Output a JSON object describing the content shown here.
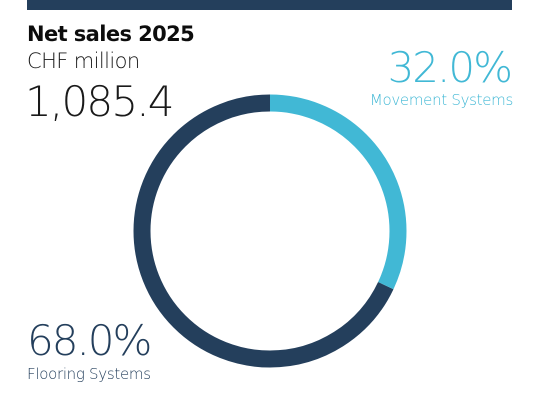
{
  "header": {
    "title": "Net sales 2025",
    "unit": "CHF million",
    "total": "1,085.4"
  },
  "colors": {
    "flooring": "#243f5c",
    "movement": "#41b8d5",
    "bar": "#243f5c"
  },
  "chart_data": {
    "type": "pie",
    "style": "donut",
    "title": "Net sales 2025",
    "subtitle": "CHF million",
    "total": 1085.4,
    "segments": [
      {
        "name": "Movement Systems",
        "value": 32.0,
        "label": "32.0%",
        "color": "#41b8d5"
      },
      {
        "name": "Flooring Systems",
        "value": 68.0,
        "label": "68.0%",
        "color": "#243f5c"
      }
    ]
  }
}
